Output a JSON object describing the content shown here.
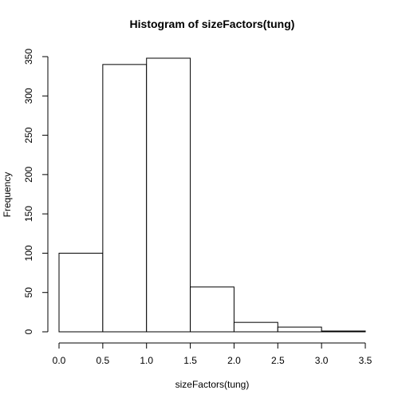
{
  "chart_data": {
    "type": "bar",
    "title": "Histogram of sizeFactors(tung)",
    "xlabel": "sizeFactors(tung)",
    "ylabel": "Frequency",
    "bins": [
      {
        "start": 0.0,
        "end": 0.5,
        "count": 100
      },
      {
        "start": 0.5,
        "end": 1.0,
        "count": 340
      },
      {
        "start": 1.0,
        "end": 1.5,
        "count": 348
      },
      {
        "start": 1.5,
        "end": 2.0,
        "count": 57
      },
      {
        "start": 2.0,
        "end": 2.5,
        "count": 12
      },
      {
        "start": 2.5,
        "end": 3.0,
        "count": 6
      },
      {
        "start": 3.0,
        "end": 3.5,
        "count": 1
      }
    ],
    "xlim": [
      0,
      3.5
    ],
    "ylim": [
      0,
      350
    ],
    "xticks": [
      "0.0",
      "0.5",
      "1.0",
      "1.5",
      "2.0",
      "2.5",
      "3.0",
      "3.5"
    ],
    "yticks": [
      "0",
      "50",
      "100",
      "150",
      "200",
      "250",
      "300",
      "350"
    ],
    "grid": false,
    "legend": "none"
  }
}
